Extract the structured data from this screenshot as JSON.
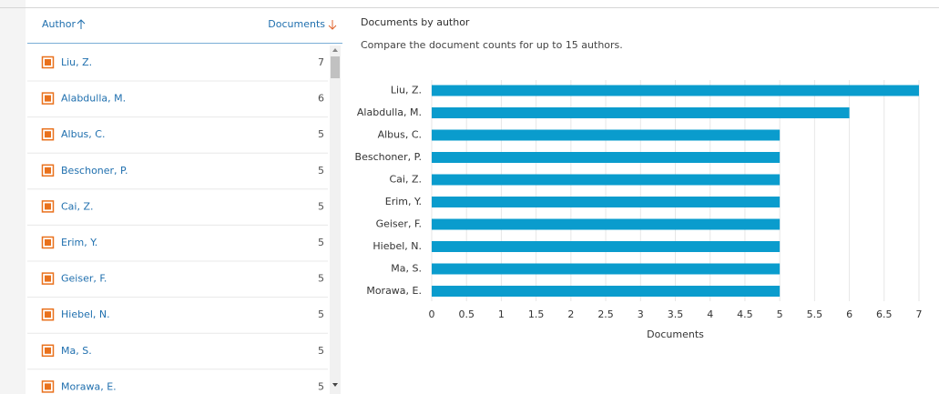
{
  "list": {
    "header": {
      "author": "Author",
      "documents": "Documents"
    },
    "rows": [
      {
        "name": "Liu, Z.",
        "documents": "7"
      },
      {
        "name": "Alabdulla, M.",
        "documents": "6"
      },
      {
        "name": "Albus, C.",
        "documents": "5"
      },
      {
        "name": "Beschoner, P.",
        "documents": "5"
      },
      {
        "name": "Cai, Z.",
        "documents": "5"
      },
      {
        "name": "Erim, Y.",
        "documents": "5"
      },
      {
        "name": "Geiser, F.",
        "documents": "5"
      },
      {
        "name": "Hiebel, N.",
        "documents": "5"
      },
      {
        "name": "Ma, S.",
        "documents": "5"
      },
      {
        "name": "Morawa, E.",
        "documents": "5"
      }
    ]
  },
  "chart_data": {
    "type": "hbar",
    "title": "Documents by author",
    "subtitle": "Compare the document counts for up to 15 authors.",
    "categories": [
      "Liu, Z.",
      "Alabdulla, M.",
      "Albus, C.",
      "Beschoner, P.",
      "Cai, Z.",
      "Erim, Y.",
      "Geiser, F.",
      "Hiebel, N.",
      "Ma, S.",
      "Morawa, E."
    ],
    "values": [
      7,
      6,
      5,
      5,
      5,
      5,
      5,
      5,
      5,
      5
    ],
    "color": "#0a9ccd",
    "xlim": [
      0,
      7
    ],
    "xticks": [
      0,
      0.5,
      1,
      1.5,
      2,
      2.5,
      3,
      3.5,
      4,
      4.5,
      5,
      5.5,
      6,
      6.5,
      7
    ],
    "xlabel": "Documents",
    "grid": true
  }
}
